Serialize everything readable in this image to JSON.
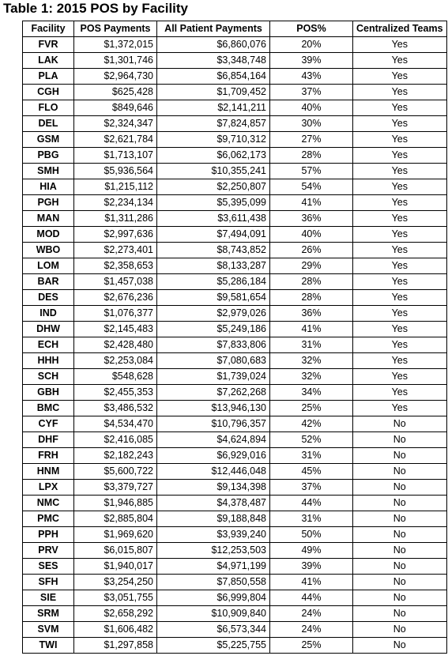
{
  "title": "Table 1: 2015 POS by Facility",
  "columns": [
    "Facility",
    "POS Payments",
    "All Patient Payments",
    "POS%",
    "Centralized Teams"
  ],
  "rows": [
    [
      "FVR",
      "$1,372,015",
      "$6,860,076",
      "20%",
      "Yes"
    ],
    [
      "LAK",
      "$1,301,746",
      "$3,348,748",
      "39%",
      "Yes"
    ],
    [
      "PLA",
      "$2,964,730",
      "$6,854,164",
      "43%",
      "Yes"
    ],
    [
      "CGH",
      "$625,428",
      "$1,709,452",
      "37%",
      "Yes"
    ],
    [
      "FLO",
      "$849,646",
      "$2,141,211",
      "40%",
      "Yes"
    ],
    [
      "DEL",
      "$2,324,347",
      "$7,824,857",
      "30%",
      "Yes"
    ],
    [
      "GSM",
      "$2,621,784",
      "$9,710,312",
      "27%",
      "Yes"
    ],
    [
      "PBG",
      "$1,713,107",
      "$6,062,173",
      "28%",
      "Yes"
    ],
    [
      "SMH",
      "$5,936,564",
      "$10,355,241",
      "57%",
      "Yes"
    ],
    [
      "HIA",
      "$1,215,112",
      "$2,250,807",
      "54%",
      "Yes"
    ],
    [
      "PGH",
      "$2,234,134",
      "$5,395,099",
      "41%",
      "Yes"
    ],
    [
      "MAN",
      "$1,311,286",
      "$3,611,438",
      "36%",
      "Yes"
    ],
    [
      "MOD",
      "$2,997,636",
      "$7,494,091",
      "40%",
      "Yes"
    ],
    [
      "WBO",
      "$2,273,401",
      "$8,743,852",
      "26%",
      "Yes"
    ],
    [
      "LOM",
      "$2,358,653",
      "$8,133,287",
      "29%",
      "Yes"
    ],
    [
      "BAR",
      "$1,457,038",
      "$5,286,184",
      "28%",
      "Yes"
    ],
    [
      "DES",
      "$2,676,236",
      "$9,581,654",
      "28%",
      "Yes"
    ],
    [
      "IND",
      "$1,076,377",
      "$2,979,026",
      "36%",
      "Yes"
    ],
    [
      "DHW",
      "$2,145,483",
      "$5,249,186",
      "41%",
      "Yes"
    ],
    [
      "ECH",
      "$2,428,480",
      "$7,833,806",
      "31%",
      "Yes"
    ],
    [
      "HHH",
      "$2,253,084",
      "$7,080,683",
      "32%",
      "Yes"
    ],
    [
      "SCH",
      "$548,628",
      "$1,739,024",
      "32%",
      "Yes"
    ],
    [
      "GBH",
      "$2,455,353",
      "$7,262,268",
      "34%",
      "Yes"
    ],
    [
      "BMC",
      "$3,486,532",
      "$13,946,130",
      "25%",
      "Yes"
    ],
    [
      "CYF",
      "$4,534,470",
      "$10,796,357",
      "42%",
      "No"
    ],
    [
      "DHF",
      "$2,416,085",
      "$4,624,894",
      "52%",
      "No"
    ],
    [
      "FRH",
      "$2,182,243",
      "$6,929,016",
      "31%",
      "No"
    ],
    [
      "HNM",
      "$5,600,722",
      "$12,446,048",
      "45%",
      "No"
    ],
    [
      "LPX",
      "$3,379,727",
      "$9,134,398",
      "37%",
      "No"
    ],
    [
      "NMC",
      "$1,946,885",
      "$4,378,487",
      "44%",
      "No"
    ],
    [
      "PMC",
      "$2,885,804",
      "$9,188,848",
      "31%",
      "No"
    ],
    [
      "PPH",
      "$1,969,620",
      "$3,939,240",
      "50%",
      "No"
    ],
    [
      "PRV",
      "$6,015,807",
      "$12,253,503",
      "49%",
      "No"
    ],
    [
      "SES",
      "$1,940,017",
      "$4,971,199",
      "39%",
      "No"
    ],
    [
      "SFH",
      "$3,254,250",
      "$7,850,558",
      "41%",
      "No"
    ],
    [
      "SIE",
      "$3,051,755",
      "$6,999,804",
      "44%",
      "No"
    ],
    [
      "SRM",
      "$2,658,292",
      "$10,909,840",
      "24%",
      "No"
    ],
    [
      "SVM",
      "$1,606,482",
      "$6,573,344",
      "24%",
      "No"
    ],
    [
      "TWI",
      "$1,297,858",
      "$5,225,755",
      "25%",
      "No"
    ]
  ]
}
